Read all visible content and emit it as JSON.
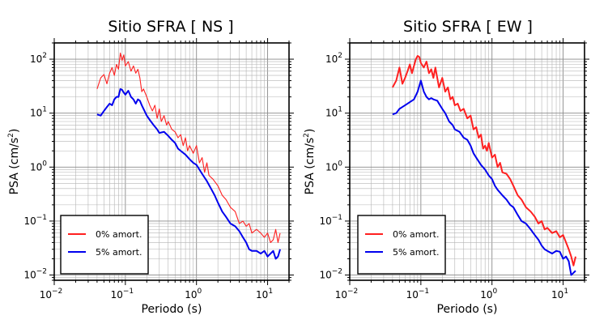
{
  "chart_data": [
    {
      "type": "line",
      "title": "Sitio SFRA [ NS ]",
      "xlabel": "Periodo (s)",
      "ylabel_parts": [
        "PSA (cm/s",
        "2",
        ")"
      ],
      "xscale": "log",
      "yscale": "log",
      "xlim": [
        0.01,
        20
      ],
      "ylim": [
        0.008,
        200
      ],
      "grid": true,
      "legend_placement": "bottom-left",
      "x_ticks": [
        {
          "base": "10",
          "exp": "−2"
        },
        {
          "base": "10",
          "exp": "−1"
        },
        {
          "base": "10",
          "exp": "0"
        },
        {
          "base": "10",
          "exp": "1"
        }
      ],
      "y_ticks": [
        {
          "base": "10",
          "exp": "−2"
        },
        {
          "base": "10",
          "exp": "−1"
        },
        {
          "base": "10",
          "exp": "0"
        },
        {
          "base": "10",
          "exp": "1"
        },
        {
          "base": "10",
          "exp": "2"
        }
      ],
      "series": [
        {
          "name": "0% amort.",
          "color": "#ff2020",
          "points": [
            [
              0.04,
              28
            ],
            [
              0.045,
              45
            ],
            [
              0.05,
              52
            ],
            [
              0.055,
              35
            ],
            [
              0.06,
              55
            ],
            [
              0.065,
              70
            ],
            [
              0.07,
              50
            ],
            [
              0.075,
              80
            ],
            [
              0.08,
              65
            ],
            [
              0.085,
              130
            ],
            [
              0.09,
              95
            ],
            [
              0.095,
              120
            ],
            [
              0.1,
              75
            ],
            [
              0.11,
              90
            ],
            [
              0.12,
              60
            ],
            [
              0.13,
              75
            ],
            [
              0.14,
              55
            ],
            [
              0.15,
              65
            ],
            [
              0.16,
              45
            ],
            [
              0.17,
              25
            ],
            [
              0.18,
              28
            ],
            [
              0.2,
              20
            ],
            [
              0.22,
              14
            ],
            [
              0.24,
              11
            ],
            [
              0.26,
              14
            ],
            [
              0.28,
              8
            ],
            [
              0.3,
              12
            ],
            [
              0.32,
              7
            ],
            [
              0.35,
              9
            ],
            [
              0.38,
              6
            ],
            [
              0.4,
              7
            ],
            [
              0.45,
              5
            ],
            [
              0.5,
              4.5
            ],
            [
              0.55,
              3.5
            ],
            [
              0.6,
              4
            ],
            [
              0.65,
              2.5
            ],
            [
              0.7,
              3.5
            ],
            [
              0.75,
              2
            ],
            [
              0.8,
              2.5
            ],
            [
              0.9,
              1.8
            ],
            [
              1.0,
              2.5
            ],
            [
              1.1,
              1.2
            ],
            [
              1.2,
              1.5
            ],
            [
              1.3,
              0.8
            ],
            [
              1.4,
              1.2
            ],
            [
              1.5,
              0.7
            ],
            [
              1.7,
              0.6
            ],
            [
              2.0,
              0.45
            ],
            [
              2.3,
              0.3
            ],
            [
              2.6,
              0.25
            ],
            [
              3.0,
              0.18
            ],
            [
              3.5,
              0.15
            ],
            [
              4.0,
              0.09
            ],
            [
              4.5,
              0.1
            ],
            [
              5.0,
              0.08
            ],
            [
              5.5,
              0.09
            ],
            [
              6.0,
              0.06
            ],
            [
              7.0,
              0.07
            ],
            [
              8.0,
              0.06
            ],
            [
              9.0,
              0.05
            ],
            [
              10.0,
              0.06
            ],
            [
              11.0,
              0.04
            ],
            [
              12.0,
              0.045
            ],
            [
              13.0,
              0.07
            ],
            [
              14.0,
              0.04
            ],
            [
              15.0,
              0.06
            ]
          ]
        },
        {
          "name": "5% amort.",
          "color": "#0000ee",
          "points": [
            [
              0.04,
              9.5
            ],
            [
              0.045,
              9
            ],
            [
              0.05,
              11
            ],
            [
              0.055,
              13
            ],
            [
              0.06,
              15
            ],
            [
              0.065,
              14
            ],
            [
              0.07,
              18
            ],
            [
              0.075,
              20
            ],
            [
              0.08,
              20
            ],
            [
              0.085,
              28
            ],
            [
              0.09,
              27
            ],
            [
              0.095,
              24
            ],
            [
              0.1,
              22
            ],
            [
              0.11,
              26
            ],
            [
              0.12,
              20
            ],
            [
              0.13,
              18
            ],
            [
              0.14,
              15
            ],
            [
              0.15,
              18
            ],
            [
              0.16,
              17
            ],
            [
              0.17,
              14
            ],
            [
              0.18,
              12
            ],
            [
              0.2,
              9
            ],
            [
              0.22,
              7.5
            ],
            [
              0.25,
              6
            ],
            [
              0.28,
              5
            ],
            [
              0.3,
              4.3
            ],
            [
              0.35,
              4.5
            ],
            [
              0.4,
              3.8
            ],
            [
              0.45,
              3.2
            ],
            [
              0.5,
              2.8
            ],
            [
              0.55,
              2.2
            ],
            [
              0.6,
              2.0
            ],
            [
              0.7,
              1.7
            ],
            [
              0.8,
              1.4
            ],
            [
              0.9,
              1.2
            ],
            [
              1.0,
              1.1
            ],
            [
              1.1,
              0.9
            ],
            [
              1.2,
              0.75
            ],
            [
              1.4,
              0.55
            ],
            [
              1.6,
              0.4
            ],
            [
              1.8,
              0.3
            ],
            [
              2.0,
              0.22
            ],
            [
              2.3,
              0.15
            ],
            [
              2.6,
              0.12
            ],
            [
              3.0,
              0.09
            ],
            [
              3.5,
              0.08
            ],
            [
              4.0,
              0.065
            ],
            [
              4.5,
              0.05
            ],
            [
              5.0,
              0.04
            ],
            [
              5.5,
              0.03
            ],
            [
              6.0,
              0.028
            ],
            [
              7.0,
              0.028
            ],
            [
              8.0,
              0.025
            ],
            [
              9.0,
              0.028
            ],
            [
              10.0,
              0.022
            ],
            [
              11.0,
              0.025
            ],
            [
              12.0,
              0.028
            ],
            [
              13.0,
              0.02
            ],
            [
              14.0,
              0.022
            ],
            [
              15.0,
              0.03
            ]
          ]
        }
      ]
    },
    {
      "type": "line",
      "title": "Sitio SFRA [ EW ]",
      "xlabel": "Periodo (s)",
      "ylabel_parts": [
        "PSA (cm/s",
        "2",
        ")"
      ],
      "xscale": "log",
      "yscale": "log",
      "xlim": [
        0.01,
        20
      ],
      "ylim": [
        0.008,
        200
      ],
      "grid": true,
      "legend_placement": "bottom-left",
      "x_ticks": [
        {
          "base": "10",
          "exp": "−2"
        },
        {
          "base": "10",
          "exp": "−1"
        },
        {
          "base": "10",
          "exp": "0"
        },
        {
          "base": "10",
          "exp": "1"
        }
      ],
      "y_ticks": [
        {
          "base": "10",
          "exp": "−2"
        },
        {
          "base": "10",
          "exp": "−1"
        },
        {
          "base": "10",
          "exp": "0"
        },
        {
          "base": "10",
          "exp": "1"
        },
        {
          "base": "10",
          "exp": "2"
        }
      ],
      "series": [
        {
          "name": "0% amort.",
          "color": "#ff2020",
          "points": [
            [
              0.04,
              30
            ],
            [
              0.045,
              40
            ],
            [
              0.05,
              70
            ],
            [
              0.055,
              35
            ],
            [
              0.06,
              45
            ],
            [
              0.065,
              60
            ],
            [
              0.07,
              80
            ],
            [
              0.075,
              55
            ],
            [
              0.08,
              75
            ],
            [
              0.085,
              100
            ],
            [
              0.09,
              115
            ],
            [
              0.095,
              110
            ],
            [
              0.1,
              85
            ],
            [
              0.11,
              70
            ],
            [
              0.12,
              90
            ],
            [
              0.13,
              55
            ],
            [
              0.14,
              65
            ],
            [
              0.15,
              45
            ],
            [
              0.16,
              70
            ],
            [
              0.17,
              45
            ],
            [
              0.18,
              30
            ],
            [
              0.2,
              45
            ],
            [
              0.22,
              25
            ],
            [
              0.24,
              30
            ],
            [
              0.26,
              18
            ],
            [
              0.28,
              20
            ],
            [
              0.3,
              14
            ],
            [
              0.33,
              15
            ],
            [
              0.36,
              11
            ],
            [
              0.4,
              12
            ],
            [
              0.45,
              8
            ],
            [
              0.5,
              9
            ],
            [
              0.55,
              5
            ],
            [
              0.6,
              5.5
            ],
            [
              0.65,
              3.5
            ],
            [
              0.7,
              4
            ],
            [
              0.75,
              2.2
            ],
            [
              0.8,
              2.5
            ],
            [
              0.85,
              2
            ],
            [
              0.9,
              2.8
            ],
            [
              1.0,
              1.5
            ],
            [
              1.1,
              1.7
            ],
            [
              1.2,
              1.0
            ],
            [
              1.3,
              1.2
            ],
            [
              1.4,
              0.8
            ],
            [
              1.6,
              0.75
            ],
            [
              1.8,
              0.6
            ],
            [
              2.0,
              0.45
            ],
            [
              2.3,
              0.3
            ],
            [
              2.6,
              0.25
            ],
            [
              3.0,
              0.18
            ],
            [
              3.5,
              0.15
            ],
            [
              4.0,
              0.12
            ],
            [
              4.5,
              0.09
            ],
            [
              5.0,
              0.1
            ],
            [
              5.5,
              0.07
            ],
            [
              6.0,
              0.075
            ],
            [
              7.0,
              0.06
            ],
            [
              8.0,
              0.065
            ],
            [
              9.0,
              0.05
            ],
            [
              10.0,
              0.055
            ],
            [
              11.0,
              0.04
            ],
            [
              12.0,
              0.03
            ],
            [
              13.0,
              0.022
            ],
            [
              14.0,
              0.015
            ],
            [
              15.0,
              0.022
            ]
          ]
        },
        {
          "name": "5% amort.",
          "color": "#0000ee",
          "points": [
            [
              0.04,
              9.5
            ],
            [
              0.045,
              10
            ],
            [
              0.05,
              12
            ],
            [
              0.055,
              13
            ],
            [
              0.06,
              14
            ],
            [
              0.07,
              16
            ],
            [
              0.08,
              18
            ],
            [
              0.09,
              25
            ],
            [
              0.1,
              40
            ],
            [
              0.11,
              25
            ],
            [
              0.12,
              20
            ],
            [
              0.13,
              18
            ],
            [
              0.14,
              19
            ],
            [
              0.15,
              18
            ],
            [
              0.17,
              17
            ],
            [
              0.18,
              15
            ],
            [
              0.2,
              12
            ],
            [
              0.22,
              10
            ],
            [
              0.25,
              7
            ],
            [
              0.28,
              6
            ],
            [
              0.3,
              5
            ],
            [
              0.35,
              4.5
            ],
            [
              0.4,
              3.5
            ],
            [
              0.45,
              3.2
            ],
            [
              0.5,
              2.5
            ],
            [
              0.55,
              1.8
            ],
            [
              0.6,
              1.5
            ],
            [
              0.7,
              1.1
            ],
            [
              0.8,
              0.9
            ],
            [
              0.9,
              0.7
            ],
            [
              1.0,
              0.6
            ],
            [
              1.1,
              0.45
            ],
            [
              1.2,
              0.38
            ],
            [
              1.4,
              0.3
            ],
            [
              1.6,
              0.25
            ],
            [
              1.8,
              0.2
            ],
            [
              2.0,
              0.18
            ],
            [
              2.3,
              0.13
            ],
            [
              2.6,
              0.1
            ],
            [
              3.0,
              0.09
            ],
            [
              3.5,
              0.07
            ],
            [
              4.0,
              0.055
            ],
            [
              4.5,
              0.045
            ],
            [
              5.0,
              0.035
            ],
            [
              5.5,
              0.03
            ],
            [
              6.0,
              0.028
            ],
            [
              7.0,
              0.025
            ],
            [
              8.0,
              0.028
            ],
            [
              9.0,
              0.027
            ],
            [
              10.0,
              0.02
            ],
            [
              11.0,
              0.022
            ],
            [
              12.0,
              0.018
            ],
            [
              13.0,
              0.01
            ],
            [
              14.0,
              0.011
            ],
            [
              15.0,
              0.012
            ]
          ]
        }
      ]
    }
  ]
}
